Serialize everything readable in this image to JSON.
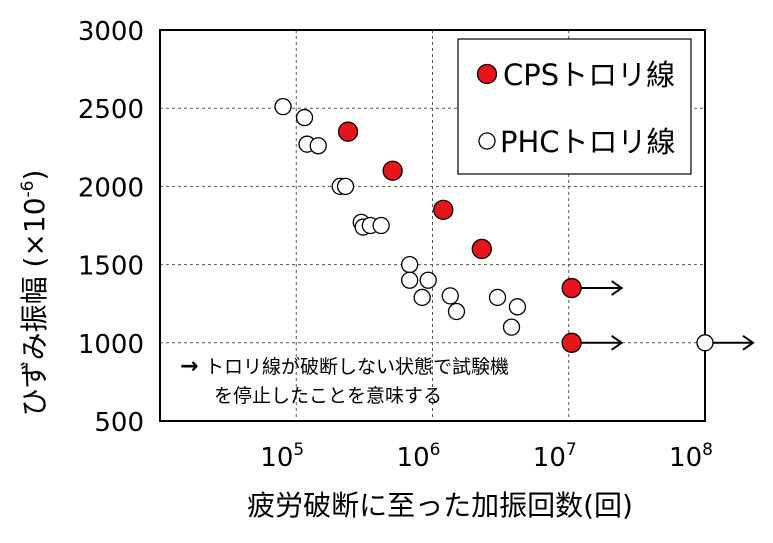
{
  "chart_data": {
    "type": "scatter",
    "xlabel": "疲労破断に至った加振回数(回)",
    "ylabel": "ひずみ振幅  (×10",
    "ylabel_sup": "-6",
    "ylabel_close": ")",
    "x_scale": "log",
    "xlim": [
      10000,
      100000000
    ],
    "ylim": [
      500,
      3000
    ],
    "x_ticks": [
      100000,
      1000000,
      10000000,
      100000000
    ],
    "x_tick_labels": [
      {
        "base": "10",
        "exp": "5"
      },
      {
        "base": "10",
        "exp": "6"
      },
      {
        "base": "10",
        "exp": "7"
      },
      {
        "base": "10",
        "exp": "8"
      }
    ],
    "y_ticks": [
      500,
      1000,
      1500,
      2000,
      2500,
      3000
    ],
    "y_tick_labels": [
      "500",
      "1000",
      "1500",
      "2000",
      "2500",
      "3000"
    ],
    "grid": "dashed",
    "legend_position": "top-right",
    "series": [
      {
        "name": "CPSトロリ線",
        "marker": "filled-circle",
        "color": "#e8141c",
        "points": [
          {
            "x": 240000,
            "y": 2350
          },
          {
            "x": 510000,
            "y": 2100
          },
          {
            "x": 1200000,
            "y": 1850
          },
          {
            "x": 2300000,
            "y": 1600
          },
          {
            "x": 10500000,
            "y": 1350,
            "runout": true
          },
          {
            "x": 10500000,
            "y": 1000,
            "runout": true
          }
        ]
      },
      {
        "name": "PHCトロリ線",
        "marker": "open-circle",
        "color": "#ffffff",
        "points": [
          {
            "x": 80000,
            "y": 2510
          },
          {
            "x": 115000,
            "y": 2440
          },
          {
            "x": 120000,
            "y": 2270
          },
          {
            "x": 145000,
            "y": 2260
          },
          {
            "x": 210000,
            "y": 2000
          },
          {
            "x": 230000,
            "y": 2000
          },
          {
            "x": 300000,
            "y": 1770
          },
          {
            "x": 310000,
            "y": 1740
          },
          {
            "x": 350000,
            "y": 1750
          },
          {
            "x": 420000,
            "y": 1750
          },
          {
            "x": 680000,
            "y": 1500
          },
          {
            "x": 680000,
            "y": 1400
          },
          {
            "x": 840000,
            "y": 1290
          },
          {
            "x": 930000,
            "y": 1400
          },
          {
            "x": 1350000,
            "y": 1300
          },
          {
            "x": 1500000,
            "y": 1200
          },
          {
            "x": 3000000,
            "y": 1290
          },
          {
            "x": 3800000,
            "y": 1100
          },
          {
            "x": 4200000,
            "y": 1230
          },
          {
            "x": 100000000,
            "y": 1000,
            "runout": true
          }
        ]
      }
    ],
    "annotation": {
      "arrow": "→",
      "line1": "トロリ線が破断しない状態で試験機",
      "line2": "を停止したことを意味する"
    }
  }
}
